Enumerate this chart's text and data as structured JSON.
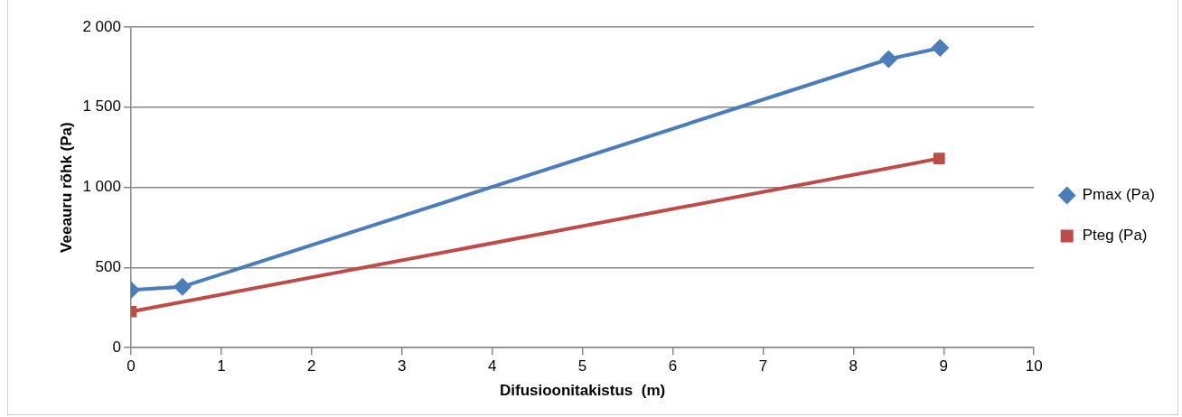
{
  "chart_data": {
    "type": "line",
    "xlabel": "Difusioonitakistus  (m)",
    "ylabel": "Veeauru rõhk (Pa)",
    "series": [
      {
        "name": "Pmax (Pa)",
        "color": "#4a7ebb",
        "marker": "diamond",
        "x": [
          0,
          0.57,
          8.39,
          8.96
        ],
        "values": [
          360,
          380,
          1800,
          1870
        ]
      },
      {
        "name": "Pteg (Pa)",
        "color": "#be4b48",
        "marker": "square",
        "x": [
          0,
          8.95
        ],
        "values": [
          225,
          1180
        ]
      }
    ],
    "xlim": [
      0,
      10
    ],
    "xticks": [
      0,
      1,
      2,
      3,
      4,
      5,
      6,
      7,
      8,
      9,
      10
    ],
    "ylim": [
      0,
      2000
    ],
    "yticks": [
      0,
      500,
      {
        "value": 1000,
        "label": "1 000"
      },
      {
        "value": 1500,
        "label": "1 500"
      },
      {
        "value": 2000,
        "label": "2 000"
      }
    ],
    "grid": "y",
    "legend": "right",
    "line_style": "solid"
  }
}
